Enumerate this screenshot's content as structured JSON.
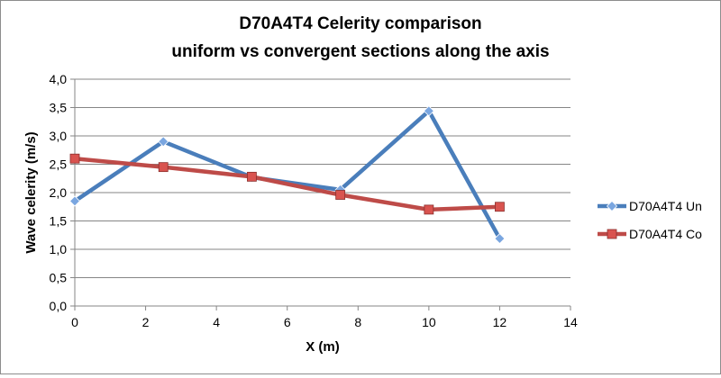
{
  "chart_data": {
    "type": "line",
    "title_line1": "D70A4T4 Celerity comparison",
    "title_line2": "uniform vs convergent sections along the axis",
    "xlabel": "X (m)",
    "ylabel": "Wave celerity (m/s)",
    "xlim": [
      0,
      14
    ],
    "ylim": [
      0,
      4
    ],
    "x_ticks": [
      0,
      2,
      4,
      6,
      8,
      10,
      12,
      14
    ],
    "x_tick_labels": [
      "0",
      "2",
      "4",
      "6",
      "8",
      "10",
      "12",
      "14"
    ],
    "y_ticks": [
      0,
      0.5,
      1,
      1.5,
      2,
      2.5,
      3,
      3.5,
      4
    ],
    "y_tick_labels": [
      "0,0",
      "0,5",
      "1,0",
      "1,5",
      "2,0",
      "2,5",
      "3,0",
      "3,5",
      "4,0"
    ],
    "grid": "horizontal",
    "legend_position": "right",
    "series": [
      {
        "name": "D70A4T4 Un",
        "marker": "diamond",
        "color": "#4a7ebb",
        "x": [
          0,
          2.5,
          5,
          7.5,
          10,
          12
        ],
        "y": [
          1.85,
          2.9,
          2.27,
          2.05,
          3.44,
          1.19
        ]
      },
      {
        "name": "D70A4T4 Co",
        "marker": "square",
        "color": "#be4b48",
        "x": [
          0,
          2.5,
          5,
          7.5,
          10,
          12
        ],
        "y": [
          2.6,
          2.45,
          2.28,
          1.96,
          1.7,
          1.75
        ]
      }
    ]
  }
}
